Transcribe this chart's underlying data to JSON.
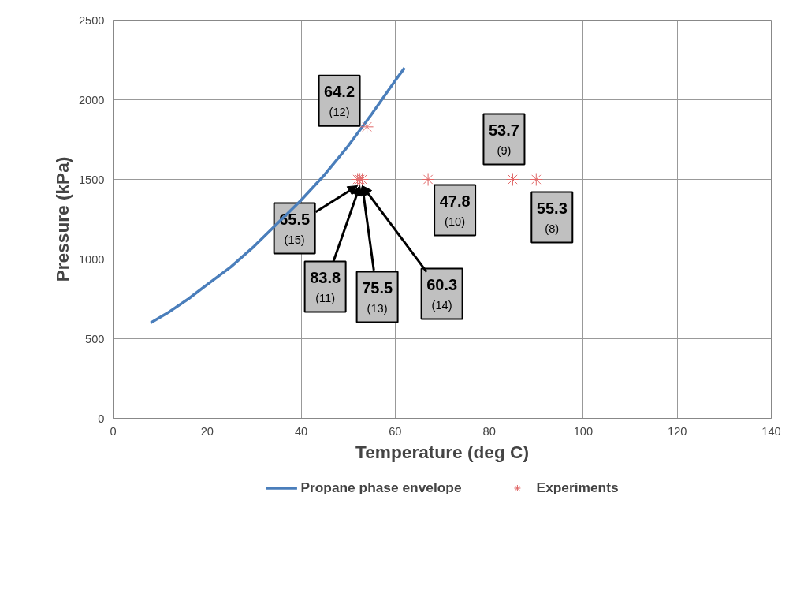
{
  "chart_data": {
    "type": "line",
    "xlabel": "Temperature (deg C)",
    "ylabel": "Pressure (kPa)",
    "xlim": [
      0,
      140
    ],
    "xticks": [
      0,
      20,
      40,
      60,
      80,
      100,
      120,
      140
    ],
    "ylim": [
      0,
      2500
    ],
    "yticks": [
      0,
      500,
      1000,
      1500,
      2000,
      2500
    ],
    "grid": true,
    "legend": "bottom",
    "series": [
      {
        "name": "Propane phase envelope",
        "color": "#4a7ebb",
        "marker": "none",
        "x": [
          8,
          12,
          16,
          20,
          25,
          30,
          40,
          45,
          50,
          55,
          60,
          62
        ],
        "values": [
          600,
          670,
          750,
          840,
          950,
          1080,
          1370,
          1530,
          1710,
          1910,
          2120,
          2200
        ]
      },
      {
        "name": "Experiments",
        "type": "scatter",
        "color": "#e06666",
        "marker": "cross",
        "x": [
          52,
          52.5,
          53,
          54,
          67,
          85,
          90
        ],
        "values": [
          1500,
          1500,
          1500,
          1830,
          1500,
          1500,
          1500
        ]
      }
    ],
    "annotations": [
      {
        "text": "64.2\n(12)",
        "x": 54,
        "y": 1830
      },
      {
        "text": "65.5\n(15)",
        "x": 52,
        "y": 1500
      },
      {
        "text": "83.8\n(11)",
        "x": 52.5,
        "y": 1500
      },
      {
        "text": "75.5\n(13)",
        "x": 53,
        "y": 1500
      },
      {
        "text": "60.3\n(14)",
        "x": 53,
        "y": 1500
      },
      {
        "text": "47.8\n(10)",
        "x": 67,
        "y": 1500
      },
      {
        "text": "53.7\n(9)",
        "x": 85,
        "y": 1500
      },
      {
        "text": "55.3\n(8)",
        "x": 90,
        "y": 1500
      }
    ]
  }
}
